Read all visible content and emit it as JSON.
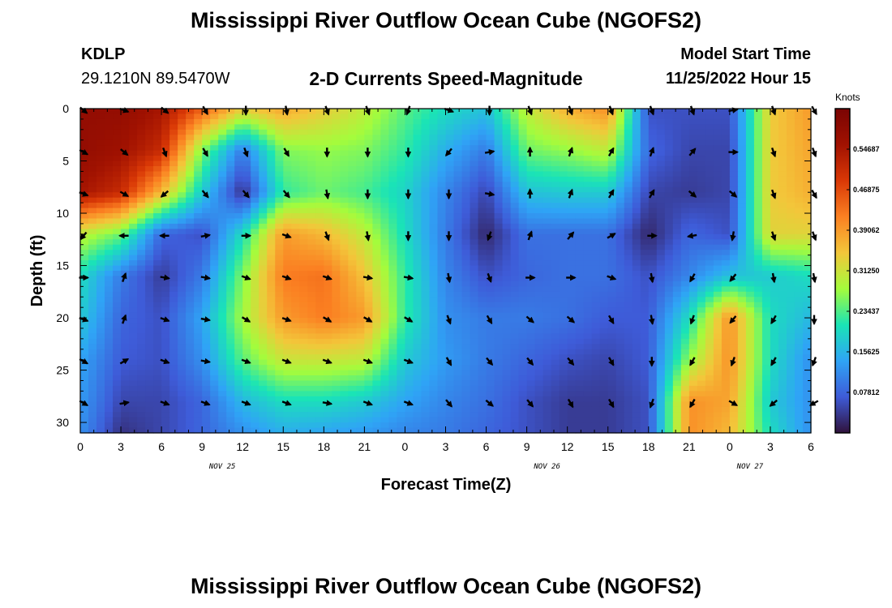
{
  "header": {
    "title": "Mississippi River Outflow Ocean Cube (NGOFS2)",
    "station": "KDLP",
    "coords": "29.1210N  89.5470W",
    "subtitle": "2-D Currents Speed-Magnitude",
    "start_label": "Model Start Time",
    "start_value": "11/25/2022 Hour 15"
  },
  "footer": {
    "title": "Mississippi River Outflow Ocean Cube (NGOFS2)"
  },
  "chart_data": {
    "type": "heatmap",
    "title": "2-D Currents Speed-Magnitude",
    "xlabel": "Forecast Time(Z)",
    "ylabel": "Depth (ft)",
    "x_tick_labels": [
      "0",
      "3",
      "6",
      "9",
      "12",
      "15",
      "18",
      "21",
      "0",
      "3",
      "6",
      "9",
      "12",
      "15",
      "18",
      "21",
      "0",
      "3",
      "6"
    ],
    "x_date_labels": [
      {
        "label": "NOV 25",
        "at_tick": 3.5
      },
      {
        "label": "NOV 26",
        "at_tick": 11.5
      },
      {
        "label": "NOV 27",
        "at_tick": 16.5
      }
    ],
    "x_range_hours": [
      0,
      54
    ],
    "y_ticks": [
      0,
      5,
      10,
      15,
      20,
      25,
      30
    ],
    "y_range_ft": [
      0,
      31
    ],
    "y_inverted": true,
    "colorbar": {
      "unit": "Knots",
      "tick_labels": [
        "0.54687",
        "0.46875",
        "0.39062",
        "0.31250",
        "0.23437",
        "0.15625",
        "0.07812"
      ],
      "tick_values": [
        0.54687,
        0.46875,
        0.39062,
        0.3125,
        0.23437,
        0.15625,
        0.07812
      ],
      "range": [
        0,
        0.625
      ],
      "colors": [
        "#30123b",
        "#3e5bd8",
        "#2fa4f6",
        "#1ae4b6",
        "#a4fc3c",
        "#f3c63a",
        "#fb8022",
        "#d93806",
        "#a11201",
        "#7a0403"
      ]
    },
    "speed_knots": {
      "hours": [
        0,
        3,
        6,
        9,
        12,
        15,
        18,
        21,
        24,
        27,
        30,
        33,
        36,
        39,
        42,
        45,
        48,
        51,
        54
      ],
      "depths_ft": [
        0,
        4,
        8,
        12,
        16,
        20,
        24,
        28,
        31
      ],
      "values": [
        [
          0.58,
          0.58,
          0.55,
          0.45,
          0.34,
          0.38,
          0.34,
          0.3,
          0.24,
          0.2,
          0.17,
          0.3,
          0.37,
          0.4,
          0.06,
          0.06,
          0.06,
          0.34,
          0.39
        ],
        [
          0.58,
          0.56,
          0.51,
          0.26,
          0.1,
          0.26,
          0.27,
          0.26,
          0.22,
          0.15,
          0.1,
          0.25,
          0.27,
          0.3,
          0.08,
          0.05,
          0.05,
          0.34,
          0.38
        ],
        [
          0.55,
          0.51,
          0.36,
          0.18,
          0.03,
          0.22,
          0.25,
          0.23,
          0.19,
          0.11,
          0.05,
          0.17,
          0.18,
          0.18,
          0.05,
          0.04,
          0.05,
          0.34,
          0.37
        ],
        [
          0.3,
          0.25,
          0.08,
          0.06,
          0.2,
          0.39,
          0.36,
          0.3,
          0.2,
          0.1,
          0.02,
          0.09,
          0.09,
          0.09,
          0.02,
          0.08,
          0.06,
          0.33,
          0.33
        ],
        [
          0.2,
          0.1,
          0.04,
          0.1,
          0.26,
          0.42,
          0.43,
          0.35,
          0.22,
          0.11,
          0.06,
          0.08,
          0.09,
          0.09,
          0.06,
          0.11,
          0.17,
          0.18,
          0.2
        ],
        [
          0.18,
          0.08,
          0.06,
          0.14,
          0.28,
          0.39,
          0.42,
          0.39,
          0.22,
          0.12,
          0.1,
          0.1,
          0.09,
          0.07,
          0.07,
          0.2,
          0.4,
          0.2,
          0.16
        ],
        [
          0.14,
          0.07,
          0.06,
          0.12,
          0.24,
          0.31,
          0.31,
          0.3,
          0.18,
          0.13,
          0.1,
          0.08,
          0.06,
          0.05,
          0.07,
          0.27,
          0.4,
          0.2,
          0.12
        ],
        [
          0.13,
          0.05,
          0.05,
          0.08,
          0.16,
          0.2,
          0.2,
          0.18,
          0.14,
          0.11,
          0.09,
          0.06,
          0.04,
          0.04,
          0.06,
          0.4,
          0.38,
          0.18,
          0.12
        ],
        [
          0.12,
          0.03,
          0.05,
          0.08,
          0.12,
          0.15,
          0.14,
          0.13,
          0.11,
          0.1,
          0.08,
          0.06,
          0.04,
          0.04,
          0.06,
          0.4,
          0.36,
          0.2,
          0.12
        ]
      ]
    },
    "current_direction_deg": {
      "hours": [
        0,
        3,
        6,
        9,
        12,
        15,
        18,
        21,
        24,
        27,
        30,
        33,
        36,
        39,
        42,
        45,
        48,
        51,
        54
      ],
      "depths_ft": [
        0,
        4,
        8,
        12,
        16,
        20,
        24,
        28
      ],
      "values": [
        [
          130,
          110,
          130,
          150,
          180,
          170,
          160,
          160,
          200,
          110,
          180,
          160,
          160,
          160,
          160,
          160,
          80,
          160,
          150
        ],
        [
          120,
          130,
          160,
          150,
          160,
          150,
          180,
          180,
          180,
          220,
          80,
          0,
          20,
          30,
          20,
          40,
          90,
          160,
          160
        ],
        [
          110,
          120,
          230,
          140,
          140,
          140,
          170,
          180,
          180,
          180,
          100,
          0,
          20,
          30,
          30,
          130,
          130,
          160,
          150
        ],
        [
          220,
          270,
          270,
          80,
          90,
          110,
          160,
          170,
          180,
          180,
          200,
          20,
          40,
          60,
          90,
          260,
          190,
          160,
          160
        ],
        [
          90,
          20,
          100,
          100,
          110,
          110,
          110,
          100,
          100,
          170,
          160,
          90,
          90,
          110,
          170,
          210,
          220,
          170,
          170
        ],
        [
          110,
          20,
          110,
          100,
          120,
          110,
          120,
          120,
          120,
          160,
          150,
          130,
          130,
          150,
          170,
          200,
          220,
          210,
          180
        ],
        [
          120,
          60,
          110,
          100,
          110,
          110,
          110,
          110,
          110,
          150,
          140,
          140,
          140,
          150,
          180,
          210,
          200,
          210,
          200
        ],
        [
          120,
          80,
          110,
          110,
          110,
          110,
          100,
          110,
          110,
          140,
          130,
          140,
          150,
          150,
          200,
          210,
          120,
          230,
          240
        ]
      ]
    }
  }
}
